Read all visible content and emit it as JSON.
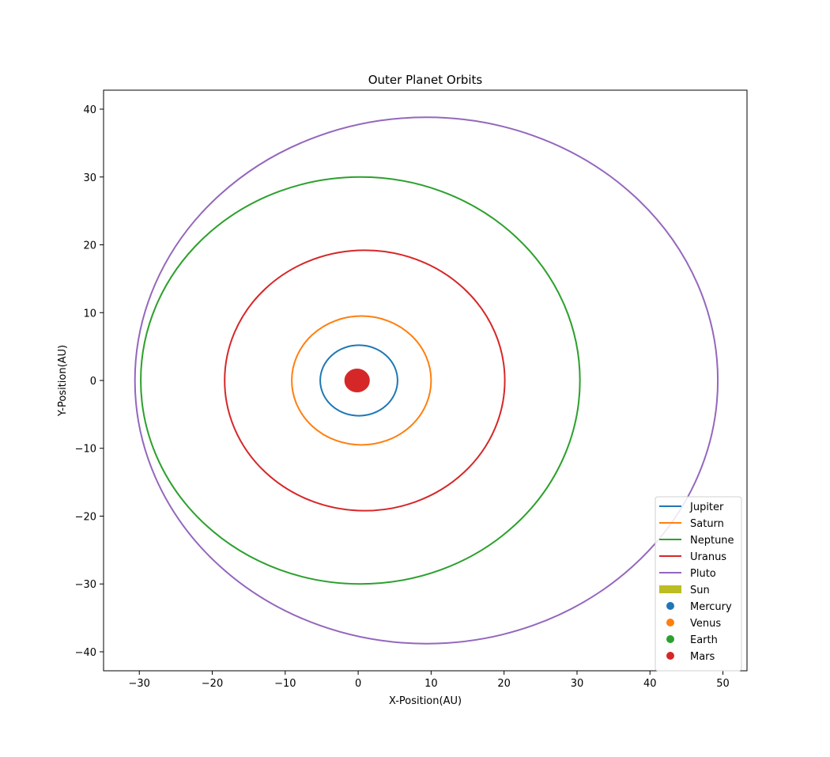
{
  "chart_data": {
    "type": "line",
    "title": "Outer Planet Orbits",
    "xlabel": "X-Position(AU)",
    "ylabel": "Y-Position(AU)",
    "xlim": [
      -34.9,
      53.3
    ],
    "ylim": [
      -42.8,
      42.8
    ],
    "xticks": [
      -30,
      -20,
      -10,
      0,
      10,
      20,
      30,
      40,
      50
    ],
    "yticks": [
      -40,
      -30,
      -20,
      -10,
      0,
      10,
      20,
      30,
      40
    ],
    "xtick_labels": [
      "−30",
      "−20",
      "−10",
      "0",
      "10",
      "20",
      "30",
      "40",
      "50"
    ],
    "ytick_labels": [
      "−40",
      "−30",
      "−20",
      "−10",
      "0",
      "10",
      "20",
      "30",
      "40"
    ],
    "grid": false,
    "legend_position": "lower right",
    "series": [
      {
        "name": "Jupiter",
        "kind": "orbit",
        "color": "#1f77b4",
        "x_min": -5.2,
        "x_max": 5.4,
        "y_max": 5.2
      },
      {
        "name": "Saturn",
        "kind": "orbit",
        "color": "#ff7f0e",
        "x_min": -9.1,
        "x_max": 10.0,
        "y_max": 9.5
      },
      {
        "name": "Neptune",
        "kind": "orbit",
        "color": "#2ca02c",
        "x_min": -29.8,
        "x_max": 30.4,
        "y_max": 30.0
      },
      {
        "name": "Uranus",
        "kind": "orbit",
        "color": "#d62728",
        "x_min": -18.3,
        "x_max": 20.1,
        "y_max": 19.2
      },
      {
        "name": "Pluto",
        "kind": "orbit",
        "color": "#9467bd",
        "x_min": -30.6,
        "x_max": 49.3,
        "y_max": 38.8
      },
      {
        "name": "Sun",
        "kind": "patch",
        "color": "#bcbd22",
        "x": 0,
        "y": 0,
        "radius": 0.1
      },
      {
        "name": "Mercury",
        "kind": "filled-orbit",
        "color": "#1f77b4",
        "x_min": -0.47,
        "x_max": 0.31,
        "y_max": 0.38
      },
      {
        "name": "Venus",
        "kind": "filled-orbit",
        "color": "#ff7f0e",
        "x_min": -0.73,
        "x_max": 0.72,
        "y_max": 0.72
      },
      {
        "name": "Earth",
        "kind": "filled-orbit",
        "color": "#2ca02c",
        "x_min": -1.02,
        "x_max": 0.98,
        "y_max": 1.0
      },
      {
        "name": "Mars",
        "kind": "filled-orbit",
        "color": "#d62728",
        "x_min": -1.67,
        "x_max": 1.38,
        "y_max": 1.52
      }
    ],
    "legend": [
      {
        "label": "Jupiter",
        "symbol": "line",
        "color": "#1f77b4"
      },
      {
        "label": "Saturn",
        "symbol": "line",
        "color": "#ff7f0e"
      },
      {
        "label": "Neptune",
        "symbol": "line",
        "color": "#2ca02c"
      },
      {
        "label": "Uranus",
        "symbol": "line",
        "color": "#d62728"
      },
      {
        "label": "Pluto",
        "symbol": "line",
        "color": "#9467bd"
      },
      {
        "label": "Sun",
        "symbol": "patch",
        "color": "#bcbd22"
      },
      {
        "label": "Mercury",
        "symbol": "marker",
        "color": "#1f77b4"
      },
      {
        "label": "Venus",
        "symbol": "marker",
        "color": "#ff7f0e"
      },
      {
        "label": "Earth",
        "symbol": "marker",
        "color": "#2ca02c"
      },
      {
        "label": "Mars",
        "symbol": "marker",
        "color": "#d62728"
      }
    ]
  }
}
